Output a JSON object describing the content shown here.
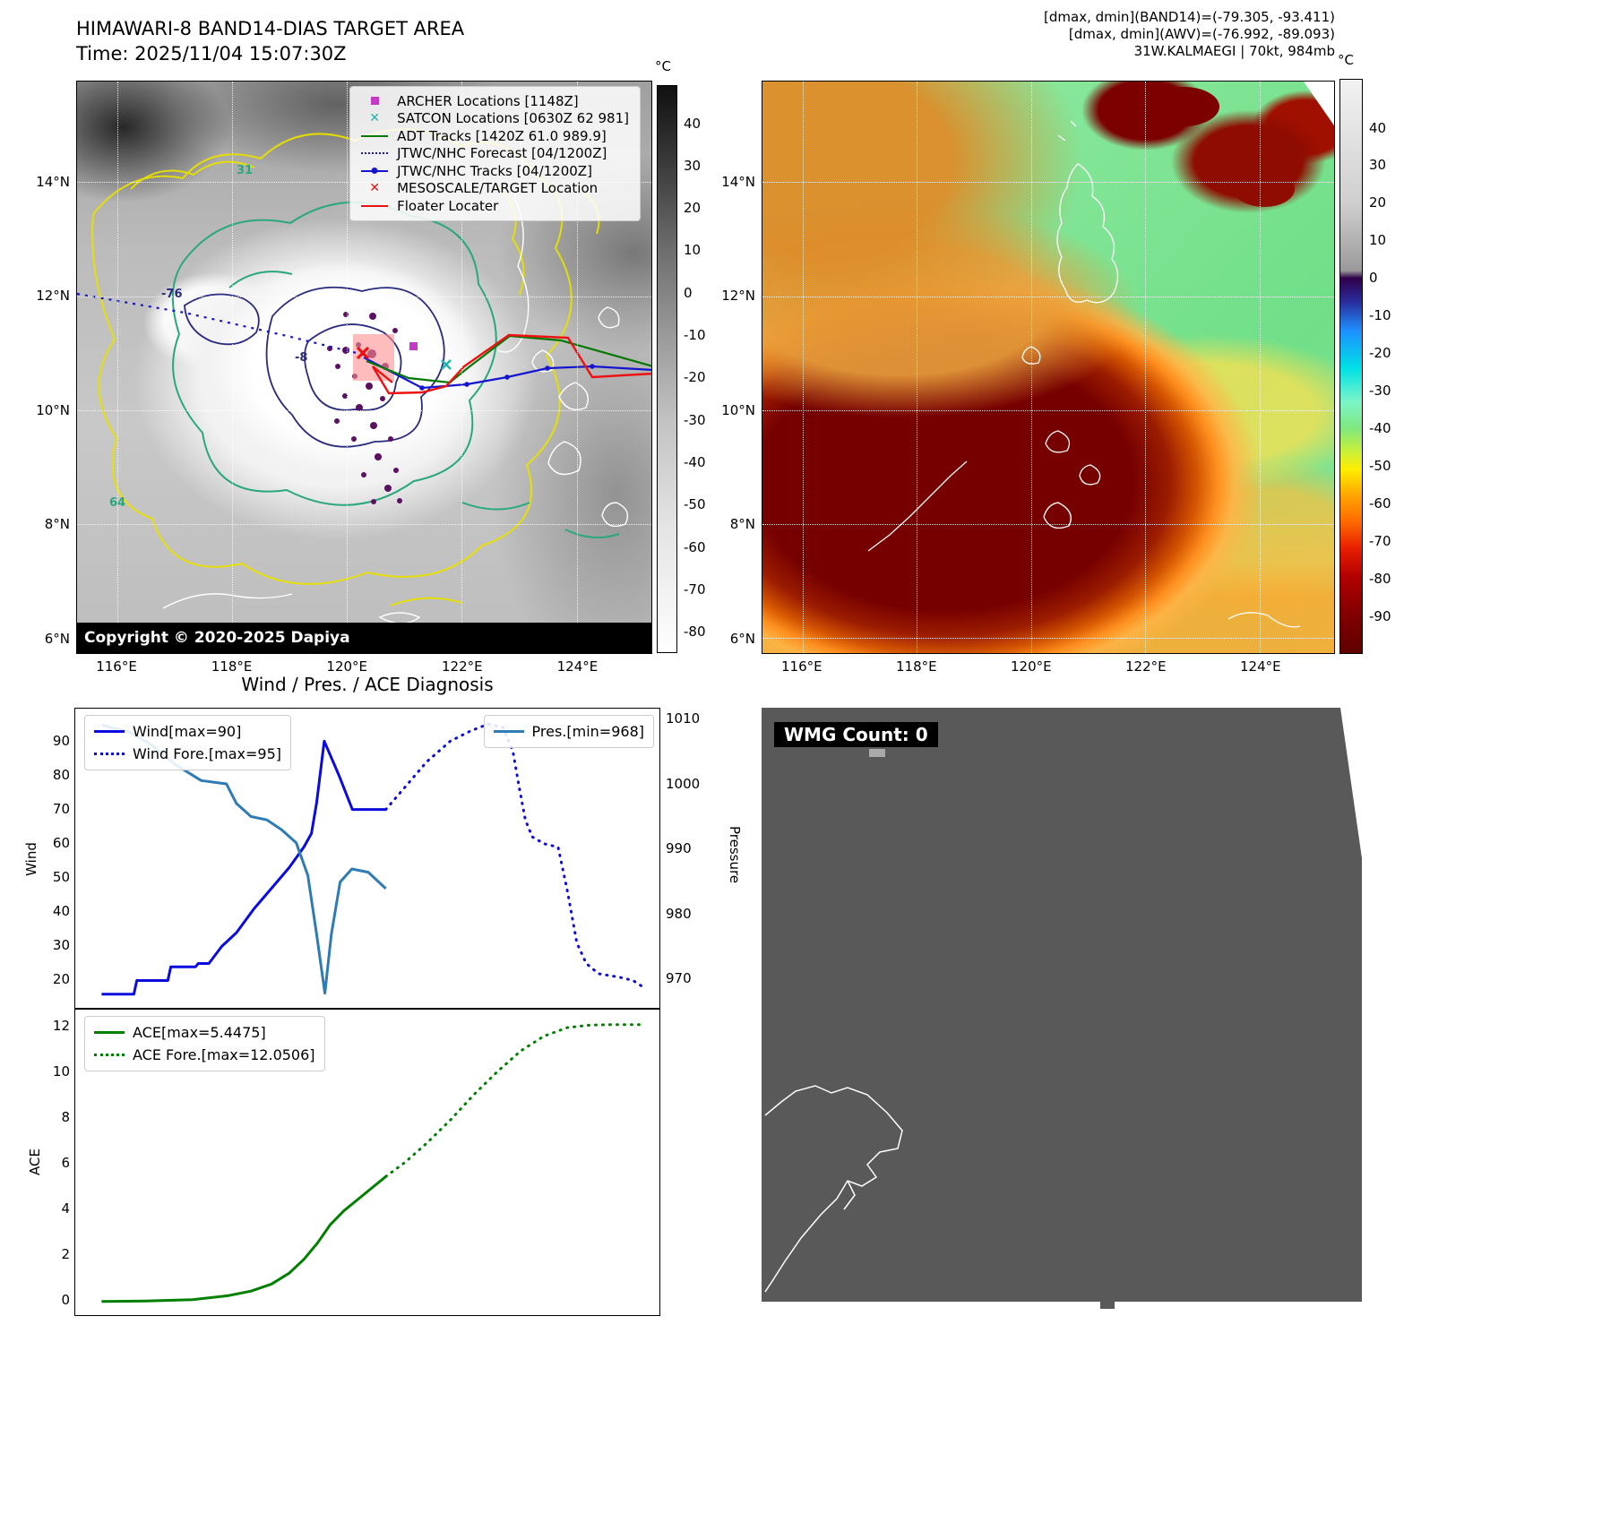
{
  "colors": {
    "wind": "#0b0bdd",
    "pressure": "#2e7bb5",
    "ace": "#008000",
    "archer_magenta": "#c53ac5",
    "satcon_teal": "#1fb5ad",
    "adt_green": "#067806",
    "jtwc_blue": "#1515d0",
    "floater_red": "#ee1111",
    "target_box_pink": "#ff8f8f",
    "wmg_gray": "#595959"
  },
  "panel_band14": {
    "title": "HIMAWARI-8 BAND14-DIAS TARGET AREA",
    "time_line": "Time: 2025/11/04 15:07:30Z",
    "copyright": "Copyright © 2020-2025 Dapiya",
    "legend": [
      {
        "label": "ARCHER Locations [1148Z]",
        "marker": "square",
        "color": "#c53ac5"
      },
      {
        "label": "SATCON Locations [0630Z 62 981]",
        "marker": "x",
        "color": "#1fb5ad"
      },
      {
        "label": "ADT Tracks [1420Z 61.0 989.9]",
        "marker": "line",
        "color": "#067806"
      },
      {
        "label": "JTWC/NHC Forecast [04/1200Z]",
        "marker": "dotted",
        "color": "#1515d0"
      },
      {
        "label": "JTWC/NHC Tracks [04/1200Z]",
        "marker": "linedot",
        "color": "#1515d0"
      },
      {
        "label": "MESOSCALE/TARGET Location",
        "marker": "x",
        "color": "#ee1111"
      },
      {
        "label": "Floater Locater",
        "marker": "line",
        "color": "#ee1111"
      }
    ],
    "extent": {
      "lon_min": 115.3,
      "lon_max": 125.3,
      "lat_min": 5.73,
      "lat_max": 15.77
    },
    "x_ticks": [
      {
        "v": 116,
        "label": "116°E"
      },
      {
        "v": 118,
        "label": "118°E"
      },
      {
        "v": 120,
        "label": "120°E"
      },
      {
        "v": 122,
        "label": "122°E"
      },
      {
        "v": 124,
        "label": "124°E"
      }
    ],
    "y_ticks": [
      {
        "v": 14,
        "label": "14°N"
      },
      {
        "v": 12,
        "label": "12°N"
      },
      {
        "v": 10,
        "label": "10°N"
      },
      {
        "v": 8,
        "label": "8°N"
      },
      {
        "v": 6,
        "label": "6°N"
      }
    ],
    "contour_labels": [
      "31",
      "-76",
      "-8",
      "64"
    ],
    "colorbar": {
      "unit": "°C",
      "vmax": 49,
      "vmin": -85,
      "ticks": [
        40,
        30,
        20,
        10,
        0,
        -10,
        -20,
        -30,
        -40,
        -50,
        -60,
        -70,
        -80
      ],
      "stops": [
        {
          "v": 49,
          "c": "#101010"
        },
        {
          "v": 30,
          "c": "#3c3c3c"
        },
        {
          "v": 10,
          "c": "#6e6e6e"
        },
        {
          "v": -10,
          "c": "#9a9a9a"
        },
        {
          "v": -30,
          "c": "#c2c2c2"
        },
        {
          "v": -55,
          "c": "#e4e4e4"
        },
        {
          "v": -80,
          "c": "#fafafa"
        },
        {
          "v": -85,
          "c": "#ffffff"
        }
      ]
    }
  },
  "panel_awv": {
    "header_lines": [
      "[dmax, dmin](BAND14)=(-79.305, -93.411)",
      "[dmax, dmin](AWV)=(-76.992, -89.093)",
      "31W.KALMAEGI | 70kt, 984mb"
    ],
    "extent": {
      "lon_min": 115.3,
      "lon_max": 125.3,
      "lat_min": 5.73,
      "lat_max": 15.77
    },
    "x_ticks": [
      {
        "v": 116,
        "label": "116°E"
      },
      {
        "v": 118,
        "label": "118°E"
      },
      {
        "v": 120,
        "label": "120°E"
      },
      {
        "v": 122,
        "label": "122°E"
      },
      {
        "v": 124,
        "label": "124°E"
      }
    ],
    "y_ticks": [
      {
        "v": 14,
        "label": "14°N"
      },
      {
        "v": 12,
        "label": "12°N"
      },
      {
        "v": 10,
        "label": "10°N"
      },
      {
        "v": 8,
        "label": "8°N"
      },
      {
        "v": 6,
        "label": "6°N"
      }
    ],
    "colorbar": {
      "unit": "°C",
      "vmax": 53,
      "vmin": -100,
      "ticks": [
        40,
        30,
        20,
        10,
        0,
        -10,
        -20,
        -30,
        -40,
        -50,
        -60,
        -70,
        -80,
        -90
      ],
      "stops": [
        {
          "v": 53,
          "c": "#f2f2f2"
        },
        {
          "v": 20,
          "c": "#cfcfcf"
        },
        {
          "v": 2,
          "c": "#9a9a9a"
        },
        {
          "v": 0,
          "c": "#31004a"
        },
        {
          "v": -6,
          "c": "#2a2a9a"
        },
        {
          "v": -14,
          "c": "#1e90ff"
        },
        {
          "v": -24,
          "c": "#00e0e6"
        },
        {
          "v": -33,
          "c": "#7cf5c8"
        },
        {
          "v": -40,
          "c": "#7fe87f"
        },
        {
          "v": -46,
          "c": "#c8f03c"
        },
        {
          "v": -51,
          "c": "#ffee00"
        },
        {
          "v": -58,
          "c": "#ffa500"
        },
        {
          "v": -65,
          "c": "#ff6a00"
        },
        {
          "v": -72,
          "c": "#e81e00"
        },
        {
          "v": -80,
          "c": "#b00000"
        },
        {
          "v": -90,
          "c": "#800000"
        },
        {
          "v": -100,
          "c": "#600000"
        }
      ]
    }
  },
  "panel_diagnosis": {
    "title": "Wind / Pres. / ACE Diagnosis"
  },
  "panel_wmg": {
    "count_label": "WMG Count: 0"
  },
  "chart_data": [
    {
      "id": "wind_pres",
      "type": "line",
      "x_range": [
        0,
        1
      ],
      "axes": {
        "left": {
          "label": "Wind",
          "ticks": [
            20,
            30,
            40,
            50,
            60,
            70,
            80,
            90
          ],
          "ylim": [
            11.5,
            99.5
          ]
        },
        "right": {
          "label": "Pressure",
          "ticks": [
            970,
            980,
            990,
            1000,
            1010
          ],
          "ylim": [
            965.5,
            1011.5
          ]
        }
      },
      "series": [
        {
          "name": "Wind[max=90]",
          "axis": "left",
          "dash": "solid",
          "color": "#0b0bdd",
          "points": [
            [
              0.045,
              16
            ],
            [
              0.1,
              16
            ],
            [
              0.105,
              20
            ],
            [
              0.158,
              20
            ],
            [
              0.163,
              24
            ],
            [
              0.205,
              24
            ],
            [
              0.21,
              25
            ],
            [
              0.228,
              25
            ],
            [
              0.25,
              30
            ],
            [
              0.275,
              34
            ],
            [
              0.305,
              41
            ],
            [
              0.335,
              47
            ],
            [
              0.365,
              53
            ],
            [
              0.39,
              59
            ],
            [
              0.403,
              63
            ],
            [
              0.412,
              72
            ],
            [
              0.425,
              90
            ],
            [
              0.45,
              80
            ],
            [
              0.473,
              70
            ],
            [
              0.53,
              70
            ]
          ]
        },
        {
          "name": "Wind Fore.[max=95]",
          "axis": "left",
          "dash": "dotted",
          "color": "#0b0bdd",
          "points": [
            [
              0.53,
              70
            ],
            [
              0.565,
              77
            ],
            [
              0.6,
              84
            ],
            [
              0.64,
              90
            ],
            [
              0.675,
              93
            ],
            [
              0.705,
              95
            ],
            [
              0.73,
              94
            ],
            [
              0.747,
              87
            ],
            [
              0.757,
              77
            ],
            [
              0.768,
              67
            ],
            [
              0.78,
              62
            ],
            [
              0.8,
              60
            ],
            [
              0.824,
              59
            ],
            [
              0.84,
              46
            ],
            [
              0.856,
              31
            ],
            [
              0.872,
              25
            ],
            [
              0.893,
              22
            ],
            [
              0.928,
              21
            ],
            [
              0.952,
              20
            ],
            [
              0.97,
              18
            ]
          ]
        },
        {
          "name": "Pres.[min=968]",
          "axis": "right",
          "dash": "solid",
          "color": "#2e7bb5",
          "points": [
            [
              0.045,
              1009
            ],
            [
              0.09,
              1008
            ],
            [
              0.13,
              1006
            ],
            [
              0.17,
              1003
            ],
            [
              0.215,
              1000.5
            ],
            [
              0.258,
              1000
            ],
            [
              0.275,
              997
            ],
            [
              0.3,
              995
            ],
            [
              0.327,
              994.5
            ],
            [
              0.352,
              993
            ],
            [
              0.377,
              991
            ],
            [
              0.397,
              986
            ],
            [
              0.412,
              977
            ],
            [
              0.426,
              968
            ],
            [
              0.437,
              977
            ],
            [
              0.452,
              985
            ],
            [
              0.472,
              987
            ],
            [
              0.5,
              986.5
            ],
            [
              0.53,
              984
            ]
          ]
        }
      ],
      "legend_groups": [
        {
          "pos": "left",
          "series": [
            0,
            1
          ]
        },
        {
          "pos": "right",
          "series": [
            2
          ]
        }
      ]
    },
    {
      "id": "ace",
      "type": "line",
      "x_range": [
        0,
        1
      ],
      "axes": {
        "left": {
          "label": "ACE",
          "ticks": [
            0,
            2,
            4,
            6,
            8,
            10,
            12
          ],
          "ylim": [
            -0.65,
            12.7
          ]
        }
      },
      "series": [
        {
          "name": "ACE[max=5.4475]",
          "axis": "left",
          "dash": "solid",
          "color": "#008000",
          "points": [
            [
              0.045,
              0.02
            ],
            [
              0.12,
              0.04
            ],
            [
              0.2,
              0.1
            ],
            [
              0.26,
              0.27
            ],
            [
              0.3,
              0.47
            ],
            [
              0.335,
              0.78
            ],
            [
              0.365,
              1.25
            ],
            [
              0.39,
              1.85
            ],
            [
              0.413,
              2.55
            ],
            [
              0.435,
              3.35
            ],
            [
              0.458,
              3.95
            ],
            [
              0.482,
              4.45
            ],
            [
              0.506,
              4.95
            ],
            [
              0.53,
              5.4475
            ]
          ]
        },
        {
          "name": "ACE Fore.[max=12.0506]",
          "axis": "left",
          "dash": "dotted",
          "color": "#008000",
          "points": [
            [
              0.53,
              5.4475
            ],
            [
              0.562,
              6.05
            ],
            [
              0.6,
              6.9
            ],
            [
              0.64,
              7.9
            ],
            [
              0.68,
              9.0
            ],
            [
              0.72,
              10.0
            ],
            [
              0.76,
              10.9
            ],
            [
              0.8,
              11.55
            ],
            [
              0.84,
              11.92
            ],
            [
              0.88,
              12.03
            ],
            [
              0.92,
              12.05
            ],
            [
              0.97,
              12.0506
            ]
          ]
        }
      ],
      "legend_groups": [
        {
          "pos": "left",
          "series": [
            0,
            1
          ]
        }
      ]
    }
  ]
}
